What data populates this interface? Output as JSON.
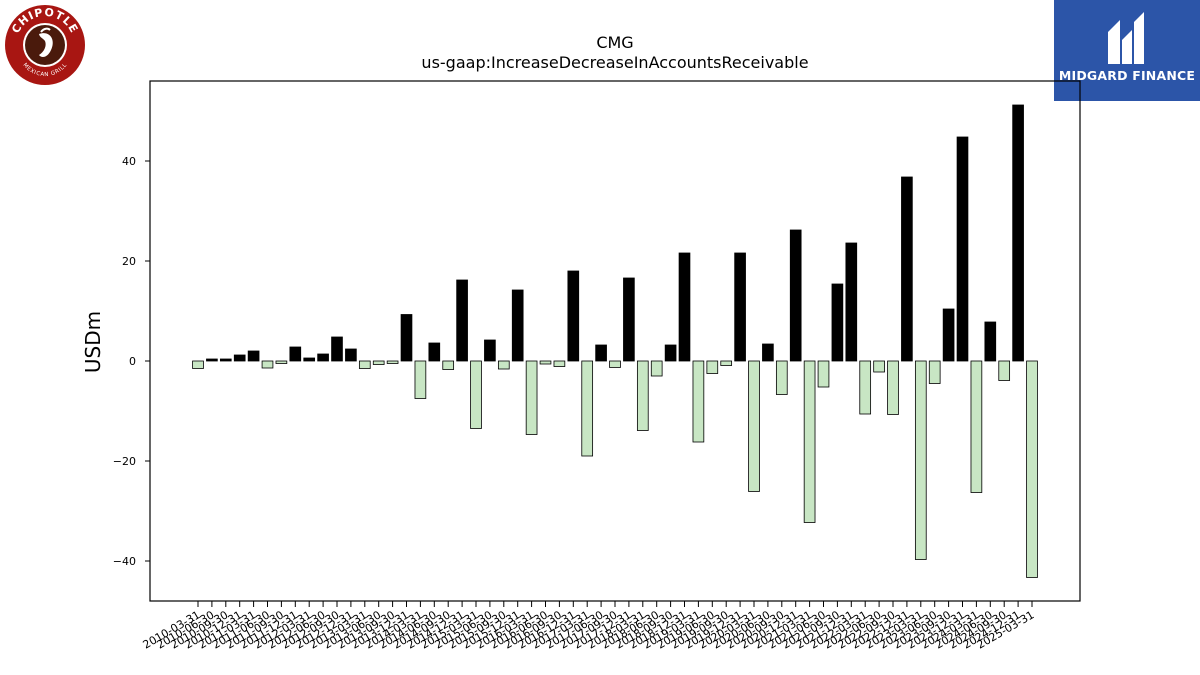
{
  "logos": {
    "left": {
      "name": "chipotle-logo",
      "top_text": "CHIPOTLE",
      "bottom_text": "MEXICAN GRILL",
      "color": "#a81612"
    },
    "right": {
      "name": "midgard-finance-logo",
      "text": "MIDGARD FINANCE",
      "color": "#2c55a8"
    }
  },
  "colors": {
    "positive": "#000000",
    "negative": "#c8e6c4",
    "edge": "#000000"
  },
  "chart_data": {
    "type": "bar",
    "title": "CMG",
    "subtitle": "us-gaap:IncreaseDecreaseInAccountsReceivable",
    "xlabel": "",
    "ylabel": "USDm",
    "ylim": [
      -48,
      56
    ],
    "yticks": [
      -40,
      -20,
      0,
      20,
      40
    ],
    "ytick_labels": [
      "−40",
      "−20",
      "0",
      "20",
      "40"
    ],
    "grid": false,
    "legend": "none",
    "categories": [
      "2010-03-31",
      "2010-06-30",
      "2010-09-30",
      "2010-12-31",
      "2011-03-31",
      "2011-06-30",
      "2011-09-30",
      "2011-12-31",
      "2012-03-31",
      "2012-06-30",
      "2012-09-30",
      "2012-12-31",
      "2013-03-31",
      "2013-06-30",
      "2013-09-30",
      "2013-12-31",
      "2014-03-31",
      "2014-06-30",
      "2014-09-30",
      "2014-12-31",
      "2015-03-31",
      "2015-06-30",
      "2015-09-30",
      "2015-12-31",
      "2016-03-31",
      "2016-06-30",
      "2016-09-30",
      "2016-12-31",
      "2017-03-31",
      "2017-06-30",
      "2017-09-30",
      "2017-12-31",
      "2018-03-31",
      "2018-06-30",
      "2018-09-30",
      "2018-12-31",
      "2019-03-31",
      "2019-06-30",
      "2019-09-30",
      "2019-12-31",
      "2020-03-31",
      "2020-06-30",
      "2020-09-30",
      "2020-12-31",
      "2021-03-31",
      "2021-06-30",
      "2021-09-30",
      "2021-12-31",
      "2022-03-31",
      "2022-06-30",
      "2022-09-30",
      "2022-12-31",
      "2023-03-31",
      "2023-06-30",
      "2023-09-30",
      "2023-12-31",
      "2024-03-31",
      "2024-06-30",
      "2024-09-30",
      "2024-12-31",
      "2025-03-31"
    ],
    "values": [
      -1.5,
      0.4,
      0.4,
      1.2,
      2.0,
      -1.4,
      -0.5,
      2.8,
      0.6,
      1.4,
      4.8,
      2.4,
      -1.5,
      -0.7,
      -0.5,
      9.3,
      -7.5,
      3.6,
      -1.7,
      16.2,
      -13.5,
      4.2,
      -1.6,
      14.2,
      -14.7,
      -0.6,
      -1.1,
      18.0,
      -19.0,
      3.2,
      -1.3,
      16.6,
      -13.9,
      -3.0,
      3.2,
      21.6,
      -16.2,
      -2.5,
      -0.9,
      21.6,
      -26.1,
      3.4,
      -6.7,
      26.2,
      -32.3,
      -5.2,
      15.4,
      23.6,
      -10.6,
      -2.2,
      -10.7,
      36.8,
      -39.7,
      -4.5,
      10.4,
      44.8,
      -26.3,
      7.8,
      -3.9,
      51.2,
      -43.3
    ]
  }
}
